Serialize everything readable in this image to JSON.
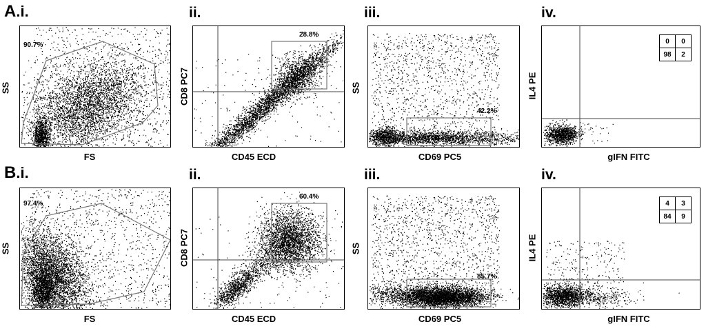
{
  "rows": [
    {
      "label": "A.i.",
      "panels": [
        {
          "index": "i.",
          "xlabel": "FS",
          "ylabel": "SS",
          "gate_value": "90.7%"
        },
        {
          "index": "ii.",
          "xlabel": "CD45 ECD",
          "ylabel": "CD8 PC7",
          "gate_value": "28.8%"
        },
        {
          "index": "iii.",
          "xlabel": "CD69 PC5",
          "ylabel": "SS",
          "gate_value": "42.2%"
        },
        {
          "index": "iv.",
          "xlabel": "gIFN FITC",
          "ylabel": "IL4 PE",
          "quadrants": [
            "0",
            "0",
            "98",
            "2"
          ]
        }
      ]
    },
    {
      "label": "B.i.",
      "panels": [
        {
          "index": "i.",
          "xlabel": "FS",
          "ylabel": "SS",
          "gate_value": "97.4%"
        },
        {
          "index": "ii.",
          "xlabel": "CD45 ECD",
          "ylabel": "CD8 PC7",
          "gate_value": "60.4%"
        },
        {
          "index": "iii.",
          "xlabel": "CD69 PC5",
          "ylabel": "SS",
          "gate_value": "85.7%"
        },
        {
          "index": "iv.",
          "xlabel": "gIFN FITC",
          "ylabel": "IL4 PE",
          "quadrants": [
            "4",
            "3",
            "84",
            "9"
          ]
        }
      ]
    }
  ],
  "labels": {
    "A": "A",
    "A_sub": ".i.",
    "B": "B",
    "B_sub": ".i.",
    "ii": "ii.",
    "iii": "iii.",
    "iv": "iv."
  }
}
